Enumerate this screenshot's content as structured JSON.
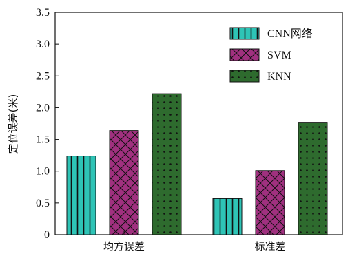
{
  "chart_data": {
    "type": "bar",
    "title": "",
    "xlabel": "",
    "ylabel": "定位误差(米)",
    "categories": [
      "均方误差",
      "标准差"
    ],
    "ylim": [
      0,
      3.5
    ],
    "yticks": [
      "0",
      "0.5",
      "1.0",
      "1.5",
      "2.0",
      "2.5",
      "3.0",
      "3.5"
    ],
    "grid": false,
    "legend_position": "top-right",
    "series": [
      {
        "name": "CNN网络",
        "values": [
          1.24,
          0.57
        ],
        "color": "#2ec4b6",
        "pattern": "vertical-lines"
      },
      {
        "name": "SVM",
        "values": [
          1.64,
          1.01
        ],
        "color": "#a0307f",
        "pattern": "crosshatch"
      },
      {
        "name": "KNN",
        "values": [
          2.22,
          1.77
        ],
        "color": "#2e6b2e",
        "pattern": "dots"
      }
    ]
  }
}
